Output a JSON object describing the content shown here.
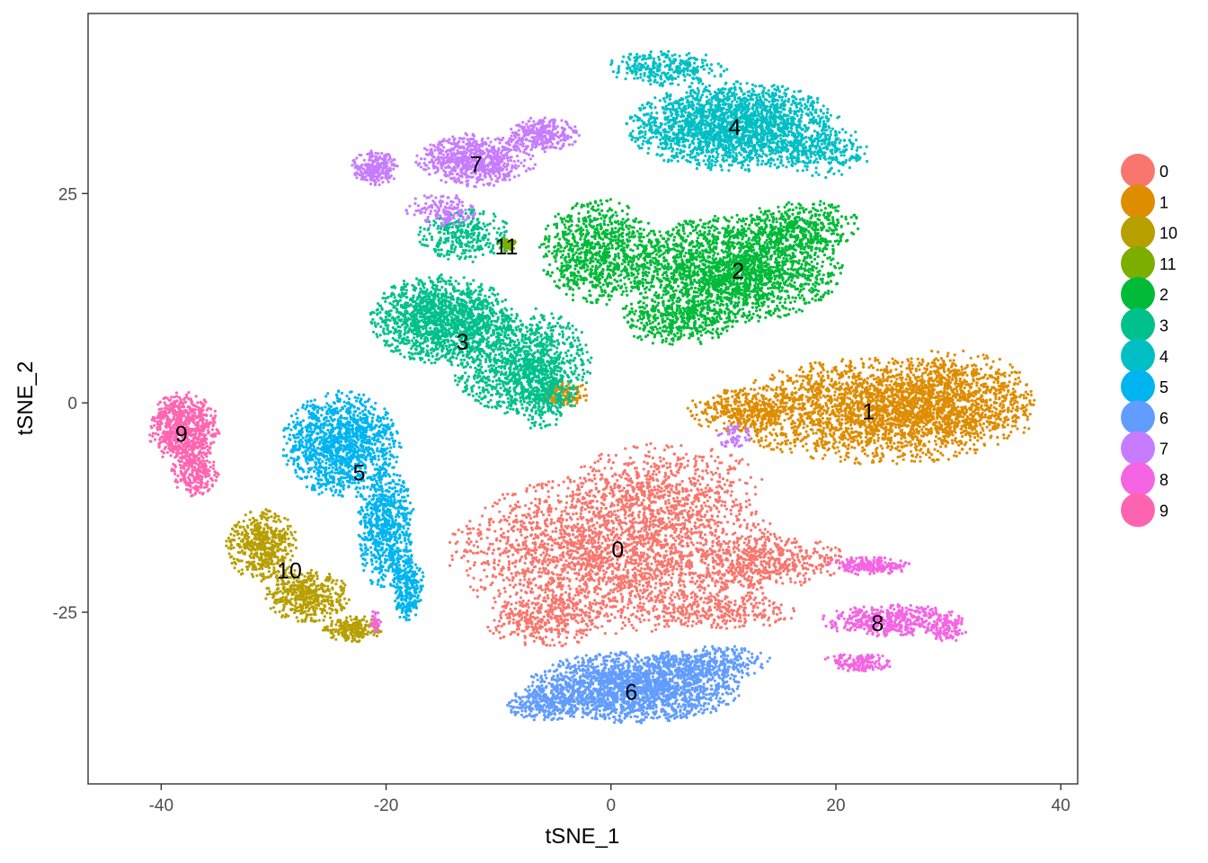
{
  "chart_data": {
    "type": "scatter",
    "xlabel": "tSNE_1",
    "ylabel": "tSNE_2",
    "xlim": [
      -46.5,
      41.5
    ],
    "ylim": [
      -45.5,
      46.5
    ],
    "x_ticks": [
      -40,
      -20,
      0,
      20,
      40
    ],
    "y_ticks": [
      -25,
      0,
      25
    ],
    "x_tick_labels": [
      "-40",
      "-20",
      "0",
      "20",
      "40"
    ],
    "y_tick_labels": [
      "-25",
      "0",
      "25"
    ],
    "grid": false,
    "legend_position": "right",
    "legend": [
      {
        "label": "0",
        "color": "#F8766D"
      },
      {
        "label": "1",
        "color": "#DE8C00"
      },
      {
        "label": "10",
        "color": "#B79F00"
      },
      {
        "label": "11",
        "color": "#7CAE00"
      },
      {
        "label": "2",
        "color": "#00BA38"
      },
      {
        "label": "3",
        "color": "#00C08B"
      },
      {
        "label": "4",
        "color": "#00BFC4"
      },
      {
        "label": "5",
        "color": "#00B4F0"
      },
      {
        "label": "6",
        "color": "#619CFF"
      },
      {
        "label": "7",
        "color": "#C77CFF"
      },
      {
        "label": "8",
        "color": "#F564E3"
      },
      {
        "label": "9",
        "color": "#FF64B0"
      }
    ],
    "clusters": [
      {
        "label": "0",
        "center": [
          0.6,
          -17.5
        ],
        "color": "#F8766D",
        "regions": [
          [
            0.5,
            -18,
            14,
            9,
            2600
          ],
          [
            5,
            -10,
            8,
            5,
            500
          ],
          [
            14,
            -19,
            7,
            3,
            450
          ],
          [
            -6,
            -26,
            5,
            3,
            300
          ],
          [
            10,
            -25,
            6,
            2,
            250
          ]
        ]
      },
      {
        "label": "1",
        "center": [
          22.9,
          -1.0
        ],
        "color": "#DE8C00",
        "regions": [
          [
            24,
            -1,
            13,
            6,
            2400
          ],
          [
            30,
            1,
            7,
            5,
            700
          ],
          [
            12,
            -1,
            5,
            2.5,
            300
          ],
          [
            -4,
            1,
            2,
            1.5,
            120
          ]
        ]
      },
      {
        "label": "10",
        "center": [
          -28.6,
          -20.0
        ],
        "color": "#B79F00",
        "regions": [
          [
            -31,
            -17,
            3,
            4,
            500
          ],
          [
            -27,
            -23,
            3.5,
            3,
            450
          ],
          [
            -23,
            -27,
            2.5,
            1.5,
            200
          ]
        ]
      },
      {
        "label": "11",
        "center": [
          -9.3,
          18.7
        ],
        "color": "#7CAE00",
        "regions": [
          [
            -9.3,
            18.9,
            0.8,
            0.8,
            60
          ]
        ]
      },
      {
        "label": "2",
        "center": [
          11.3,
          15.8
        ],
        "color": "#00BA38",
        "regions": [
          [
            11,
            16,
            9,
            6,
            2200
          ],
          [
            -1,
            18,
            5,
            6,
            900
          ],
          [
            17,
            21,
            5,
            3,
            400
          ],
          [
            6,
            10,
            5,
            3,
            400
          ]
        ]
      },
      {
        "label": "3",
        "center": [
          -13.2,
          7.3
        ],
        "color": "#00C08B",
        "regions": [
          [
            -15,
            10,
            6,
            5,
            1400
          ],
          [
            -8,
            5,
            6,
            6,
            1100
          ],
          [
            -13,
            20,
            4,
            3,
            300
          ],
          [
            -6,
            1,
            3,
            4,
            300
          ]
        ]
      },
      {
        "label": "4",
        "center": [
          11.0,
          33.0
        ],
        "color": "#00BFC4",
        "regions": [
          [
            11,
            33,
            9,
            5,
            2200
          ],
          [
            5,
            40,
            5,
            2,
            300
          ],
          [
            19,
            30,
            4,
            3,
            250
          ]
        ]
      },
      {
        "label": "5",
        "center": [
          -22.4,
          -8.3
        ],
        "color": "#00B4F0",
        "regions": [
          [
            -24,
            -5,
            5,
            6,
            1300
          ],
          [
            -20,
            -15,
            2.5,
            7,
            700
          ],
          [
            -18,
            -22,
            1.3,
            4,
            250
          ]
        ]
      },
      {
        "label": "6",
        "center": [
          1.8,
          -34.5
        ],
        "color": "#619CFF",
        "regions": [
          [
            2,
            -34,
            9,
            4,
            2000
          ],
          [
            9,
            -31,
            5,
            2,
            300
          ],
          [
            -6,
            -36,
            3,
            2,
            250
          ]
        ]
      },
      {
        "label": "7",
        "center": [
          -12.0,
          28.5
        ],
        "color": "#C77CFF",
        "regions": [
          [
            -12,
            29,
            5,
            3,
            700
          ],
          [
            -6,
            32,
            3,
            2,
            300
          ],
          [
            -21,
            28,
            2,
            2,
            250
          ],
          [
            -15,
            23,
            3,
            2,
            150
          ],
          [
            11,
            -4,
            1.5,
            1.5,
            60
          ]
        ]
      },
      {
        "label": "8",
        "center": [
          23.7,
          -26.3
        ],
        "color": "#F564E3",
        "regions": [
          [
            25,
            -26,
            6,
            1.8,
            500
          ],
          [
            23,
            -19.5,
            3.5,
            1,
            200
          ],
          [
            22,
            -31,
            3,
            1,
            150
          ],
          [
            30,
            -27,
            1.5,
            1.5,
            80
          ],
          [
            -21,
            -26,
            0.5,
            1.5,
            30
          ]
        ]
      },
      {
        "label": "9",
        "center": [
          -38.2,
          -3.7
        ],
        "color": "#FF64B0",
        "regions": [
          [
            -38,
            -3,
            3,
            4,
            700
          ],
          [
            -37,
            -8,
            2,
            3,
            250
          ]
        ]
      }
    ]
  }
}
